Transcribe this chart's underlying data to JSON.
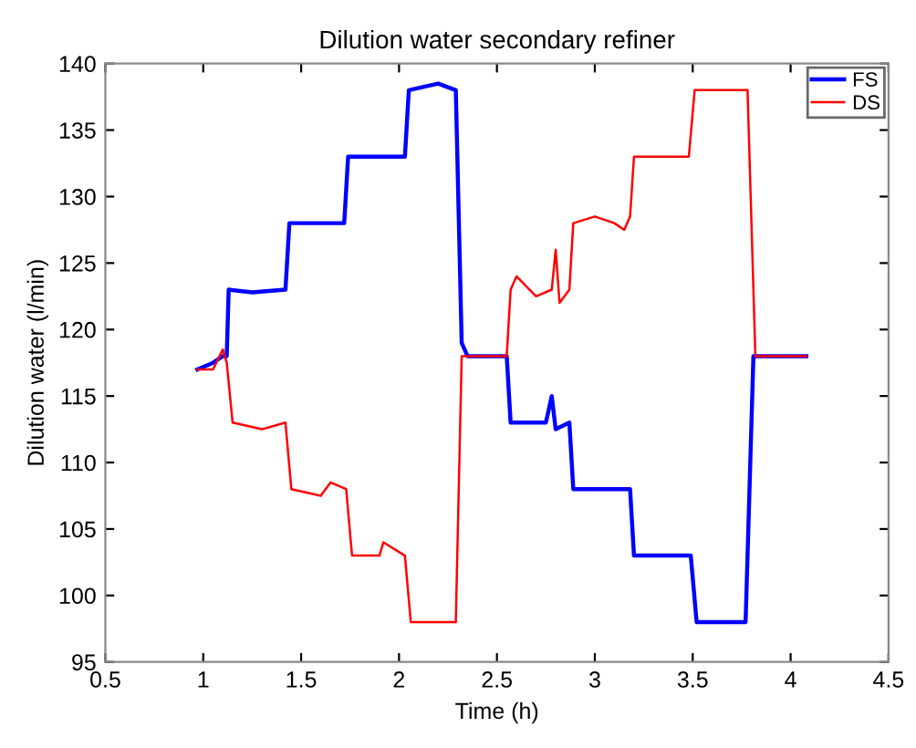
{
  "chart_data": {
    "type": "line",
    "title": "Dilution water secondary refiner",
    "xlabel": "Time (h)",
    "ylabel": "Dilution water (l/min)",
    "xlim": [
      0.5,
      4.5
    ],
    "xticks": [
      0.5,
      1,
      1.5,
      2,
      2.5,
      3,
      3.5,
      4,
      4.5
    ],
    "ylim": [
      95,
      140
    ],
    "yticks": [
      95,
      100,
      105,
      110,
      115,
      120,
      125,
      130,
      135,
      140
    ],
    "grid": false,
    "legend": "top right",
    "marker": "none",
    "line_style": "solid",
    "series": [
      {
        "name": "FS",
        "color": "#0000ff",
        "x": [
          0.97,
          1.05,
          1.1,
          1.12,
          1.13,
          1.25,
          1.42,
          1.44,
          1.6,
          1.72,
          1.74,
          2.0,
          2.03,
          2.05,
          2.2,
          2.29,
          2.32,
          2.35,
          2.55,
          2.57,
          2.75,
          2.78,
          2.8,
          2.87,
          2.89,
          3.18,
          3.2,
          3.49,
          3.52,
          3.77,
          3.81,
          4.08
        ],
        "values": [
          117,
          117.5,
          118,
          118,
          123,
          122.8,
          123,
          128,
          128,
          128,
          133,
          133,
          133,
          138,
          138.5,
          138,
          119,
          118,
          118,
          113,
          113,
          115,
          112.5,
          113,
          108,
          108,
          103,
          103,
          98,
          98,
          118,
          118
        ]
      },
      {
        "name": "DS",
        "color": "#ff0000",
        "x": [
          0.97,
          1.05,
          1.1,
          1.12,
          1.15,
          1.3,
          1.42,
          1.45,
          1.6,
          1.65,
          1.73,
          1.76,
          1.9,
          1.92,
          2.03,
          2.06,
          2.29,
          2.32,
          2.55,
          2.57,
          2.6,
          2.7,
          2.78,
          2.8,
          2.82,
          2.87,
          2.89,
          3.0,
          3.1,
          3.15,
          3.18,
          3.2,
          3.48,
          3.51,
          3.78,
          3.82,
          4.08
        ],
        "values": [
          117,
          117,
          118.5,
          117.5,
          113,
          112.5,
          113,
          108,
          107.5,
          108.5,
          108,
          103,
          103,
          104,
          103,
          98,
          98,
          118,
          118,
          123,
          124,
          122.5,
          123,
          126,
          122,
          123,
          128,
          128.5,
          128,
          127.5,
          128.5,
          133,
          133,
          138,
          138,
          118,
          118
        ]
      }
    ]
  }
}
